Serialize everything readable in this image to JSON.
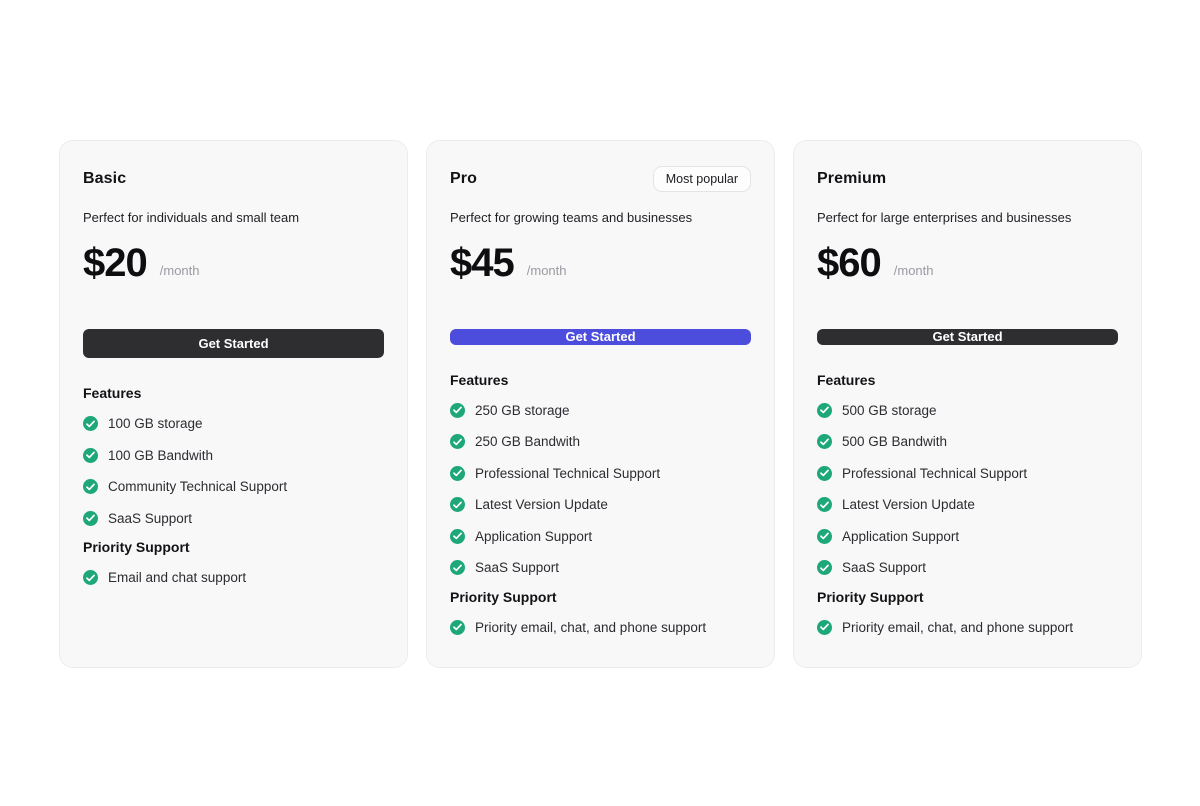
{
  "colors": {
    "page_background": "#ffffff",
    "card_background": "#f8f8f9",
    "card_border": "#ececee",
    "dark_button": "#2e2e31",
    "accent_button": "#4c4ddc",
    "check_green": "#1ea879",
    "muted_text": "#9a9aa1"
  },
  "plans": [
    {
      "name": "Basic",
      "description": "Perfect for individuals and small team",
      "price": "$20",
      "period": "/month",
      "cta_label": "Get Started",
      "features_heading": "Features",
      "features": [
        "100 GB storage",
        "100 GB Bandwith",
        "Community Technical Support",
        "SaaS Support"
      ],
      "priority_heading": "Priority Support",
      "priority_features": [
        "Email and chat support"
      ]
    },
    {
      "name": "Pro",
      "badge": "Most popular",
      "description": "Perfect for growing teams and businesses",
      "price": "$45",
      "period": "/month",
      "cta_label": "Get Started",
      "features_heading": "Features",
      "features": [
        "250 GB storage",
        "250 GB Bandwith",
        "Professional Technical Support",
        "Latest Version Update",
        "Application Support",
        "SaaS Support"
      ],
      "priority_heading": "Priority Support",
      "priority_features": [
        "Priority email, chat, and phone support"
      ]
    },
    {
      "name": "Premium",
      "description": "Perfect for large enterprises and businesses",
      "price": "$60",
      "period": "/month",
      "cta_label": "Get Started",
      "features_heading": "Features",
      "features": [
        "500 GB storage",
        "500 GB Bandwith",
        "Professional Technical Support",
        "Latest Version Update",
        "Application Support",
        "SaaS Support"
      ],
      "priority_heading": "Priority Support",
      "priority_features": [
        "Priority email, chat, and phone support"
      ]
    }
  ]
}
